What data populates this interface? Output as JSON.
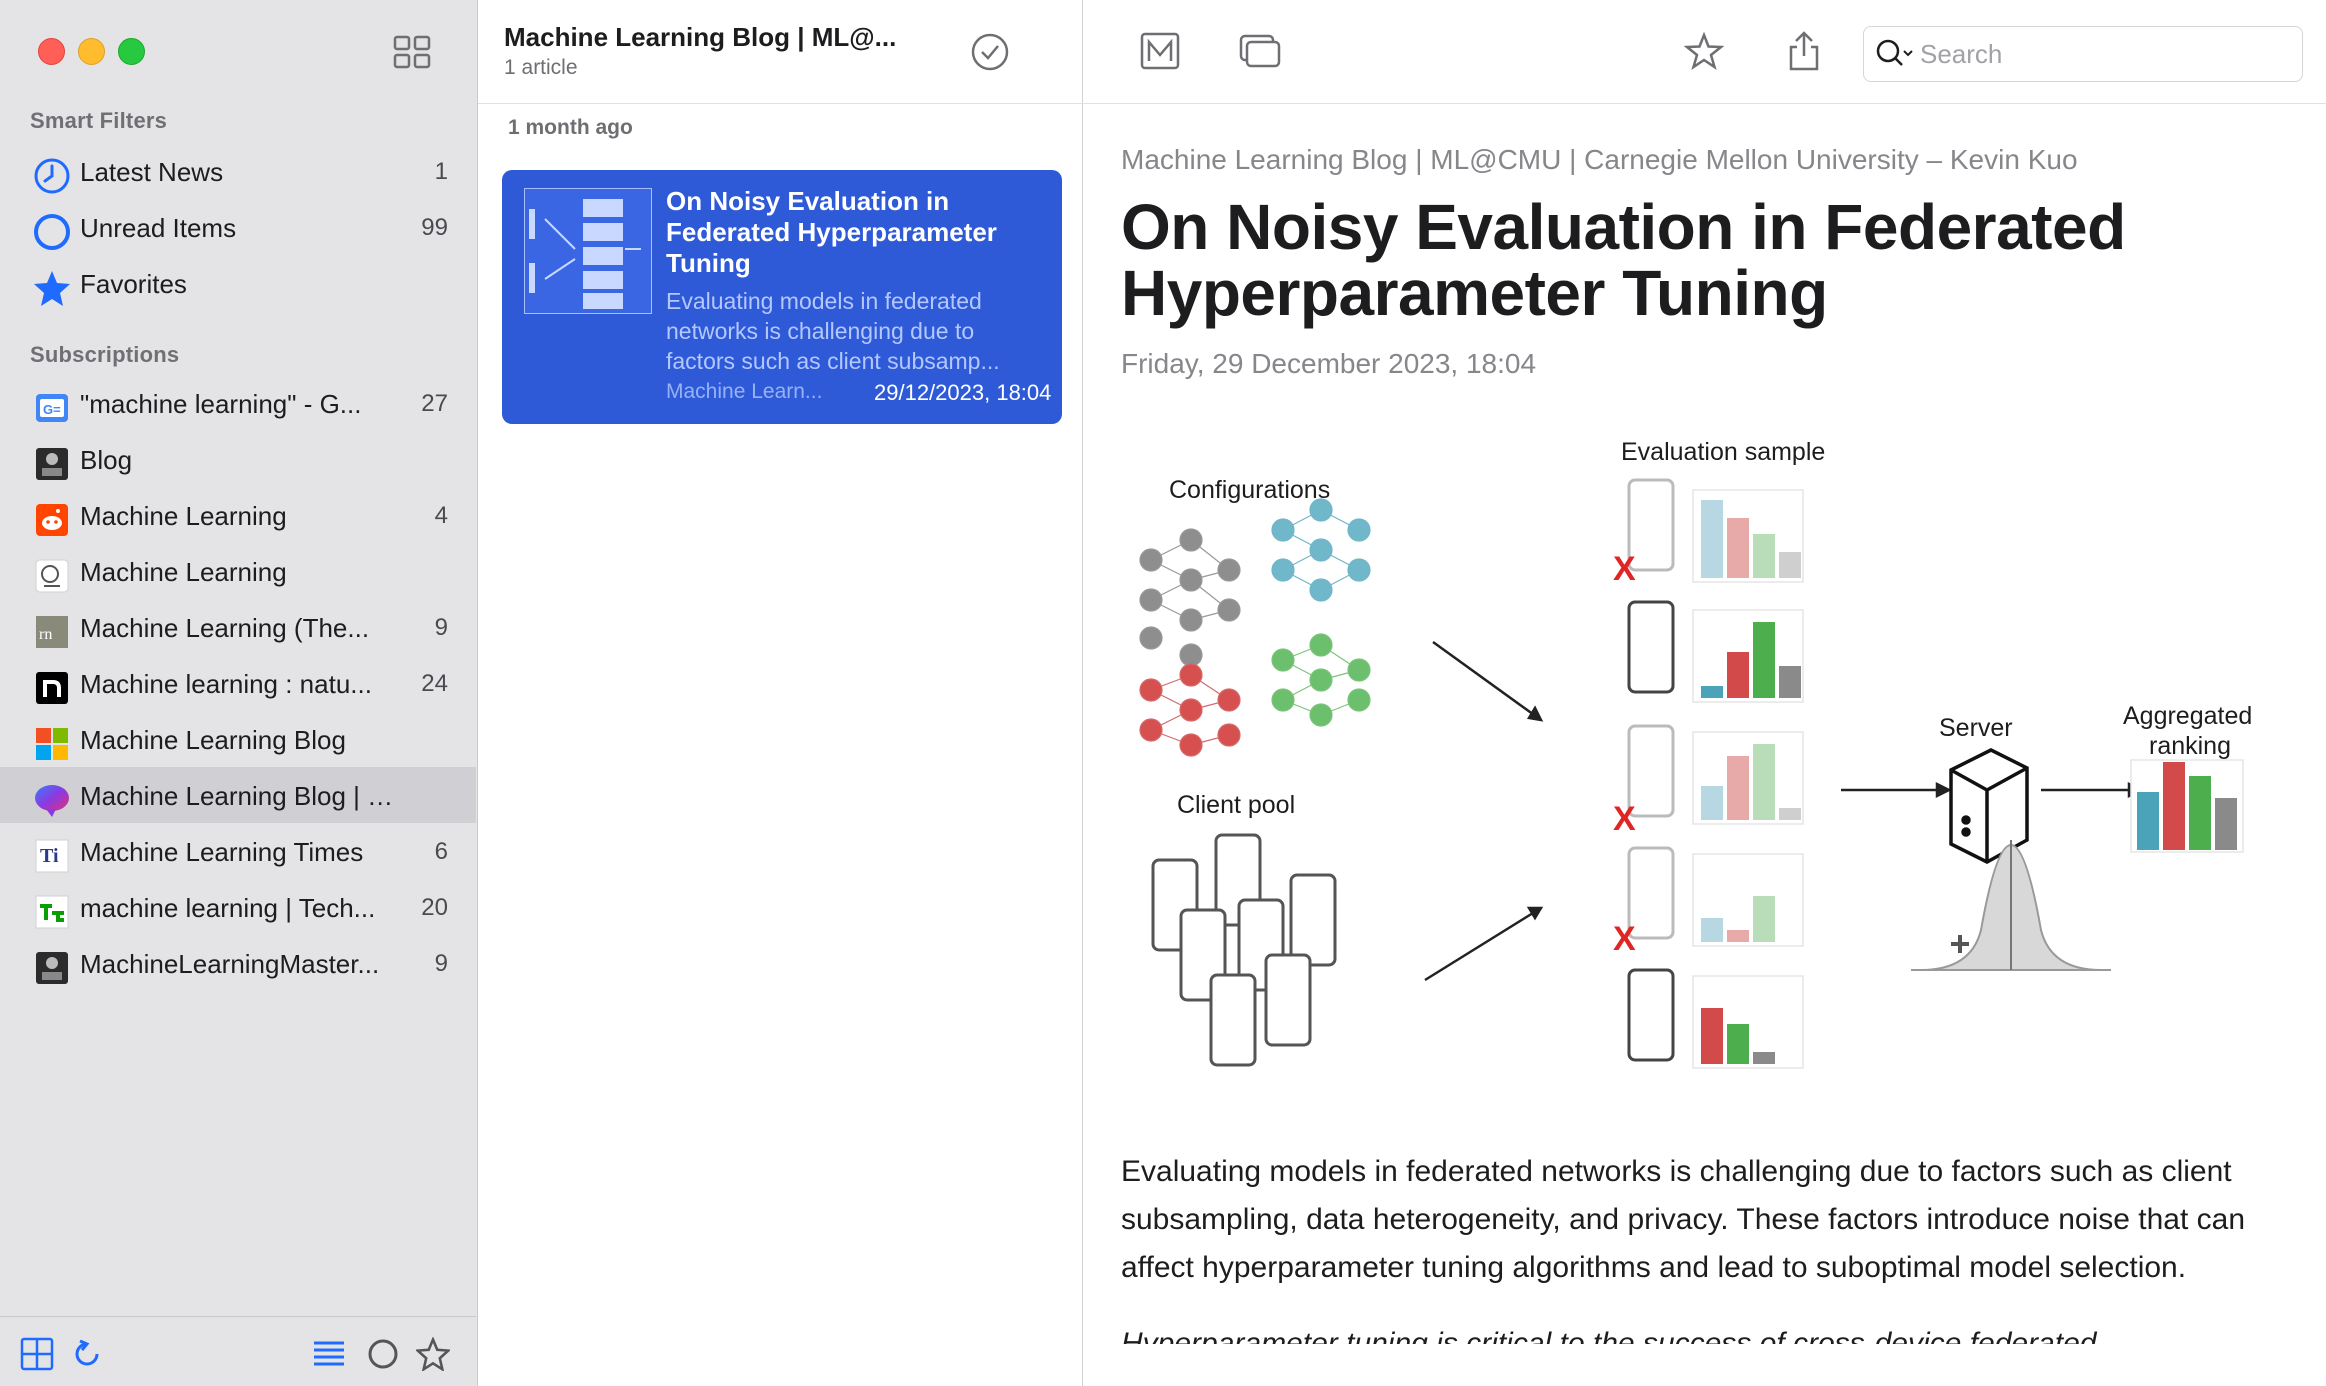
{
  "sidebar": {
    "smart_filters_title": "Smart Filters",
    "smart_filters": [
      {
        "label": "Latest News",
        "count": "1",
        "icon": "clock-icon"
      },
      {
        "label": "Unread Items",
        "count": "99",
        "icon": "unread-circle-icon"
      },
      {
        "label": "Favorites",
        "count": "",
        "icon": "star-icon"
      }
    ],
    "subscriptions_title": "Subscriptions",
    "subscriptions": [
      {
        "label": "\"machine learning\" - G...",
        "count": "27",
        "icon": "google-news-icon"
      },
      {
        "label": "Blog",
        "count": "",
        "icon": "blog-feed-icon"
      },
      {
        "label": "Machine Learning",
        "count": "4",
        "icon": "reddit-icon"
      },
      {
        "label": "Machine Learning",
        "count": "",
        "icon": "ml-feed-icon"
      },
      {
        "label": "Machine Learning (The...",
        "count": "9",
        "icon": "rn-feed-icon"
      },
      {
        "label": "Machine learning : natu...",
        "count": "24",
        "icon": "nature-icon"
      },
      {
        "label": "Machine Learning Blog",
        "count": "",
        "icon": "microsoft-icon"
      },
      {
        "label": "Machine Learning Blog | ML...",
        "count": "",
        "icon": "cmu-brain-icon"
      },
      {
        "label": "Machine Learning Times",
        "count": "6",
        "icon": "times-icon"
      },
      {
        "label": "machine learning | Tech...",
        "count": "20",
        "icon": "techcrunch-icon"
      },
      {
        "label": "MachineLearningMaster...",
        "count": "9",
        "icon": "mlm-feed-icon"
      }
    ]
  },
  "list": {
    "title": "Machine Learning Blog | ML@...",
    "subtitle": "1 article",
    "group": "1 month ago",
    "article": {
      "title": "On Noisy Evaluation in Federated Hyperparameter Tuning",
      "excerpt": "Evaluating models in federated networks is challenging due to factors such as client subsamp...",
      "source": "Machine Learn...",
      "date": "29/12/2023, 18:04"
    }
  },
  "toolbar": {
    "search_placeholder": "Search"
  },
  "article": {
    "byline": "Machine Learning Blog | ML@CMU | Carnegie Mellon University – Kevin Kuo",
    "title": "On Noisy Evaluation in Federated Hyperparameter Tuning",
    "date": "Friday, 29 December 2023, 18:04",
    "figure": {
      "label_configurations": "Configurations",
      "label_client_pool": "Client pool",
      "label_evaluation_sample": "Evaluation sample",
      "label_server": "Server",
      "label_aggregated_1": "Aggregated",
      "label_aggregated_2": "ranking",
      "drop_mark": "X"
    },
    "body": "Evaluating models in federated networks is challenging due to factors such as client subsampling, data heterogeneity, and privacy. These factors introduce noise that can affect hyperparameter tuning algorithms and lead to suboptimal model selection.",
    "next_line": "Hyperparameter tuning is critical to the success of cross-device federated"
  },
  "colors": {
    "selection": "#2e5ad8",
    "accent": "#1f6bff",
    "bar_teal": "#4aa3b8",
    "bar_red": "#d24a4a",
    "bar_green": "#4cae4c",
    "bar_gray": "#8a8a8a"
  }
}
